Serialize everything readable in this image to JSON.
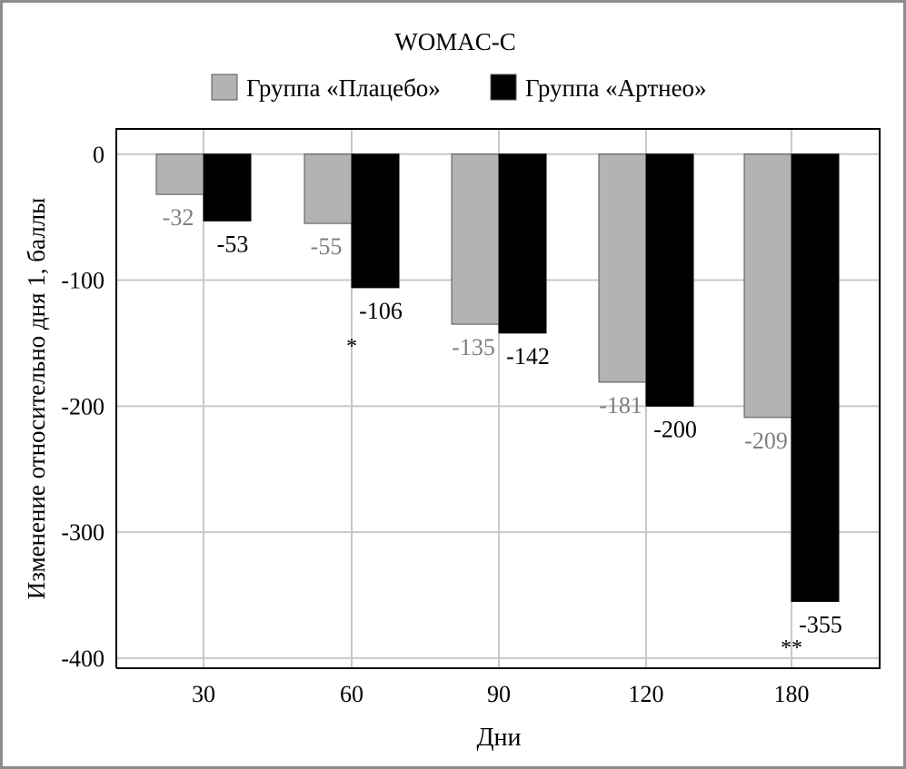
{
  "chart_data": {
    "type": "bar",
    "title": "WOMAC-C",
    "xlabel": "Дни",
    "ylabel": "Изменение относительно дня 1, баллы",
    "categories": [
      "30",
      "60",
      "90",
      "120",
      "180"
    ],
    "series": [
      {
        "name": "Группа «Плацебо»",
        "color": "#b3b3b3",
        "label_color": "#7f7f7f",
        "values": [
          -32,
          -55,
          -135,
          -181,
          -209
        ]
      },
      {
        "name": "Группа «Артнео»",
        "color": "#000000",
        "label_color": "#000000",
        "values": [
          -53,
          -106,
          -142,
          -200,
          -355
        ]
      }
    ],
    "annotations": [
      {
        "category": "60",
        "text": "*"
      },
      {
        "category": "180",
        "text": "**"
      }
    ],
    "yticks": [
      0,
      -100,
      -200,
      -300,
      -400
    ],
    "ylim": [
      -408,
      20
    ],
    "grid": true,
    "legend_position": "top"
  }
}
